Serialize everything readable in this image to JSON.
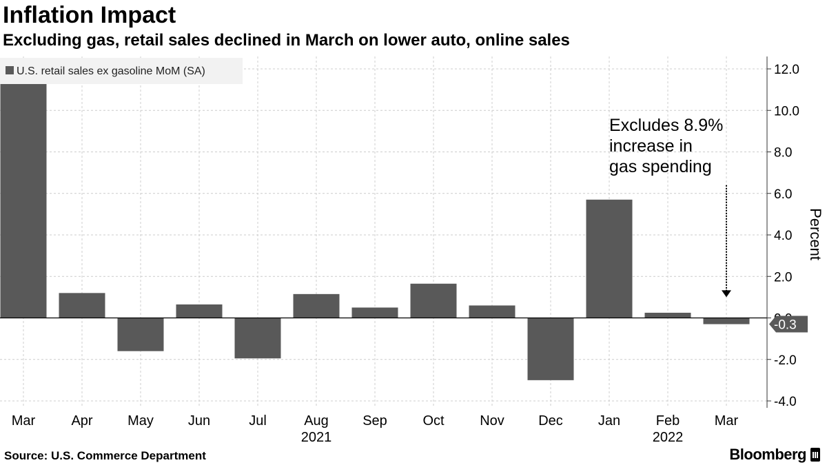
{
  "header": {
    "title": "Inflation Impact",
    "subtitle": "Excluding gas, retail sales declined in March on lower auto, online sales"
  },
  "footer": {
    "source": "Source: U.S. Commerce Department",
    "brand": "Bloomberg",
    "brand_icon": "bloomberg-terminal-icon"
  },
  "colors": {
    "bar": "#595959",
    "grid": "#cccccc",
    "legend_bg": "#f2f2f2",
    "last_value_bg": "#595959"
  },
  "chart_data": {
    "type": "bar",
    "categories": [
      "Mar",
      "Apr",
      "May",
      "Jun",
      "Jul",
      "Aug",
      "Sep",
      "Oct",
      "Nov",
      "Dec",
      "Jan",
      "Feb",
      "Mar"
    ],
    "year_labels": [
      {
        "label": "2021",
        "category_index": 5
      },
      {
        "label": "2022",
        "category_index": 11
      }
    ],
    "series": [
      {
        "name": "U.S. retail sales ex gasoline MoM (SA)",
        "values": [
          11.3,
          1.2,
          -1.6,
          0.65,
          -1.95,
          1.15,
          0.5,
          1.65,
          0.6,
          -3.0,
          5.7,
          0.25,
          -0.3
        ]
      }
    ],
    "ylabel": "Percent",
    "ylim": [
      -4.0,
      12.0
    ],
    "y_ticks": [
      12.0,
      10.0,
      8.0,
      6.0,
      4.0,
      2.0,
      0.0,
      -2.0,
      -4.0
    ],
    "y_tick_labels": [
      "12.0",
      "10.0",
      "8.0",
      "6.0",
      "4.0",
      "2.0",
      "0.0",
      "-2.0",
      "-4.0"
    ],
    "y_axis_position": "right",
    "grid": true,
    "legend_position": "top-left",
    "last_value_label": "-0.3",
    "annotation": {
      "lines": [
        "Excludes 8.9%",
        "increase in",
        "gas spending"
      ],
      "target_category_index": 12,
      "arrow_from_value": 6.4,
      "arrow_to_value": 1.0
    }
  }
}
